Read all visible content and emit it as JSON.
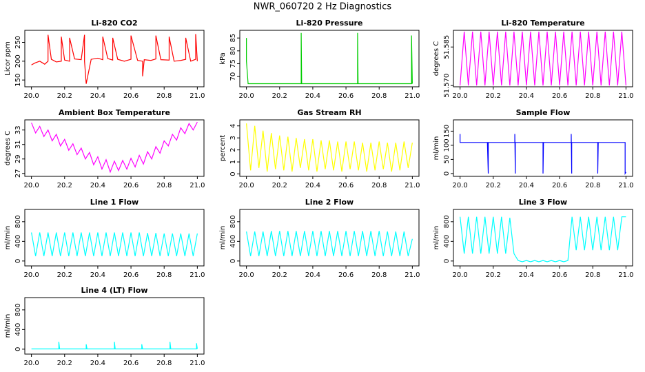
{
  "title": "NWR_060720  2 Hz Diagnostics",
  "chart_data": [
    {
      "type": "line",
      "title": "Li-820 CO2",
      "ylabel": "Licor ppm",
      "color": "#ff0000",
      "xlim": [
        19.96,
        21.04
      ],
      "xticks": [
        {
          "value": 20,
          "label": "20.0"
        },
        {
          "value": 20.2,
          "label": "20.2"
        },
        {
          "value": 20.4,
          "label": "20.4"
        },
        {
          "value": 20.6,
          "label": "20.6"
        },
        {
          "value": 20.8,
          "label": "20.8"
        },
        {
          "value": 21,
          "label": "21.0"
        }
      ],
      "ylim": [
        132,
        282
      ],
      "yticks": [
        150,
        200,
        250
      ],
      "x": [
        20,
        20.02,
        20.05,
        20.08,
        20.1,
        20.1,
        20.12,
        20.15,
        20.18,
        20.18,
        20.2,
        20.23,
        20.23,
        20.26,
        20.3,
        20.32,
        20.32,
        20.33,
        20.36,
        20.4,
        20.43,
        20.43,
        20.46,
        20.49,
        20.49,
        20.52,
        20.56,
        20.6,
        20.6,
        20.64,
        20.67,
        20.67,
        20.68,
        20.72,
        20.75,
        20.75,
        20.78,
        20.83,
        20.83,
        20.86,
        20.9,
        20.93,
        20.93,
        20.96,
        20.99,
        20.99,
        21
      ],
      "values": [
        190,
        195,
        200,
        192,
        200,
        270,
        205,
        198,
        200,
        265,
        203,
        200,
        262,
        206,
        204,
        270,
        200,
        140,
        205,
        208,
        204,
        265,
        207,
        203,
        262,
        205,
        200,
        205,
        268,
        202,
        200,
        160,
        204,
        202,
        206,
        268,
        204,
        203,
        265,
        200,
        202,
        205,
        262,
        200,
        205,
        272,
        200
      ]
    },
    {
      "type": "line",
      "title": "Li-820 Pressure",
      "ylabel": "kPa",
      "color": "#00cd00",
      "xlim": [
        19.96,
        21.04
      ],
      "xticks": [
        {
          "value": 20,
          "label": "20.0"
        },
        {
          "value": 20.2,
          "label": "20.2"
        },
        {
          "value": 20.4,
          "label": "20.4"
        },
        {
          "value": 20.6,
          "label": "20.6"
        },
        {
          "value": 20.8,
          "label": "20.8"
        },
        {
          "value": 21,
          "label": "21.0"
        }
      ],
      "ylim": [
        66,
        88
      ],
      "yticks": [
        70,
        75,
        80,
        85
      ],
      "x": [
        20,
        20,
        20.01,
        20.33,
        20.33,
        20.333,
        20.67,
        20.67,
        20.673,
        20.995,
        20.995,
        21
      ],
      "values": [
        85,
        76,
        67.2,
        67.2,
        87,
        67.2,
        67.2,
        87,
        67.2,
        67.2,
        86,
        67.2
      ]
    },
    {
      "type": "line",
      "title": "Li-820 Temperature",
      "ylabel": "degrees C",
      "color": "#ff00ff",
      "xlim": [
        19.96,
        21.04
      ],
      "xticks": [
        {
          "value": 20,
          "label": "20.0"
        },
        {
          "value": 20.2,
          "label": "20.2"
        },
        {
          "value": 20.4,
          "label": "20.4"
        },
        {
          "value": 20.6,
          "label": "20.6"
        },
        {
          "value": 20.8,
          "label": "20.8"
        },
        {
          "value": 21,
          "label": "21.0"
        }
      ],
      "ylim": [
        51.5695,
        51.5915
      ],
      "yticks": [
        {
          "value": 51.57,
          "label": "51.570"
        },
        {
          "value": 51.585,
          "label": "51.585"
        }
      ],
      "x": [
        20,
        20.025,
        20.05,
        20.075,
        20.1,
        20.125,
        20.15,
        20.175,
        20.2,
        20.225,
        20.25,
        20.275,
        20.3,
        20.325,
        20.35,
        20.375,
        20.4,
        20.425,
        20.45,
        20.475,
        20.5,
        20.525,
        20.55,
        20.575,
        20.6,
        20.625,
        20.65,
        20.675,
        20.7,
        20.725,
        20.75,
        20.775,
        20.8,
        20.825,
        20.85,
        20.875,
        20.9,
        20.925,
        20.95,
        20.975,
        21
      ],
      "values": [
        51.57,
        51.591,
        51.57,
        51.591,
        51.57,
        51.591,
        51.57,
        51.591,
        51.57,
        51.591,
        51.57,
        51.591,
        51.57,
        51.591,
        51.57,
        51.591,
        51.57,
        51.591,
        51.57,
        51.591,
        51.57,
        51.591,
        51.57,
        51.591,
        51.57,
        51.591,
        51.57,
        51.591,
        51.57,
        51.591,
        51.57,
        51.591,
        51.57,
        51.591,
        51.57,
        51.591,
        51.57,
        51.591,
        51.57,
        51.591,
        51.57
      ]
    },
    {
      "type": "line",
      "title": "Ambient Box Temperature",
      "ylabel": "degrees C",
      "color": "#ff00ff",
      "xlim": [
        19.96,
        21.04
      ],
      "xticks": [
        {
          "value": 20,
          "label": "20.0"
        },
        {
          "value": 20.2,
          "label": "20.2"
        },
        {
          "value": 20.4,
          "label": "20.4"
        },
        {
          "value": 20.6,
          "label": "20.6"
        },
        {
          "value": 20.8,
          "label": "20.8"
        },
        {
          "value": 21,
          "label": "21.0"
        }
      ],
      "ylim": [
        26.6,
        34.4
      ],
      "yticks": [
        27,
        29,
        31,
        33
      ],
      "x": [
        20,
        20.025,
        20.05,
        20.075,
        20.1,
        20.125,
        20.15,
        20.175,
        20.2,
        20.225,
        20.25,
        20.275,
        20.3,
        20.325,
        20.35,
        20.375,
        20.4,
        20.425,
        20.45,
        20.475,
        20.5,
        20.525,
        20.55,
        20.575,
        20.6,
        20.625,
        20.65,
        20.675,
        20.7,
        20.725,
        20.75,
        20.775,
        20.8,
        20.825,
        20.85,
        20.875,
        20.9,
        20.925,
        20.95,
        20.975,
        21
      ],
      "values": [
        34.0,
        32.6,
        33.5,
        32.1,
        33.0,
        31.5,
        32.4,
        30.8,
        31.7,
        30.2,
        31.1,
        29.6,
        30.5,
        29.0,
        29.9,
        28.2,
        29.3,
        27.6,
        28.9,
        27.2,
        28.7,
        27.4,
        28.8,
        27.6,
        29.1,
        27.9,
        29.5,
        28.3,
        30.0,
        29.0,
        30.7,
        29.8,
        31.5,
        30.8,
        32.4,
        31.6,
        33.3,
        32.5,
        33.9,
        33.0,
        34.1
      ]
    },
    {
      "type": "line",
      "title": "Gas Stream RH",
      "ylabel": "percent",
      "color": "#ffff00",
      "xlim": [
        19.96,
        21.04
      ],
      "xticks": [
        {
          "value": 20,
          "label": "20.0"
        },
        {
          "value": 20.2,
          "label": "20.2"
        },
        {
          "value": 20.4,
          "label": "20.4"
        },
        {
          "value": 20.6,
          "label": "20.6"
        },
        {
          "value": 20.8,
          "label": "20.8"
        },
        {
          "value": 21,
          "label": "21.0"
        }
      ],
      "ylim": [
        -0.2,
        4.5
      ],
      "yticks": [
        0,
        1,
        2,
        3,
        4
      ],
      "x": [
        20,
        20.025,
        20.05,
        20.075,
        20.1,
        20.125,
        20.15,
        20.175,
        20.2,
        20.225,
        20.25,
        20.275,
        20.3,
        20.325,
        20.35,
        20.375,
        20.4,
        20.425,
        20.45,
        20.475,
        20.5,
        20.525,
        20.55,
        20.575,
        20.6,
        20.625,
        20.65,
        20.675,
        20.7,
        20.725,
        20.75,
        20.775,
        20.8,
        20.825,
        20.85,
        20.875,
        20.9,
        20.925,
        20.95,
        20.975,
        21
      ],
      "values": [
        4.2,
        0.3,
        4.0,
        0.5,
        3.6,
        0.2,
        3.4,
        0.4,
        3.2,
        0.3,
        3.1,
        0.2,
        3.0,
        0.5,
        2.9,
        0.3,
        2.9,
        0.2,
        2.8,
        0.4,
        2.8,
        0.3,
        2.7,
        0.2,
        2.7,
        0.4,
        2.7,
        0.3,
        2.6,
        0.2,
        2.6,
        0.3,
        2.7,
        0.4,
        2.6,
        0.2,
        2.6,
        0.3,
        2.7,
        0.5,
        2.6
      ]
    },
    {
      "type": "line",
      "title": "Sample Flow",
      "ylabel": "ml/min",
      "color": "#0000ff",
      "xlim": [
        19.96,
        21.04
      ],
      "xticks": [
        {
          "value": 20,
          "label": "20.0"
        },
        {
          "value": 20.2,
          "label": "20.2"
        },
        {
          "value": 20.4,
          "label": "20.4"
        },
        {
          "value": 20.6,
          "label": "20.6"
        },
        {
          "value": 20.8,
          "label": "20.8"
        },
        {
          "value": 21,
          "label": "21.0"
        }
      ],
      "ylim": [
        -10,
        190
      ],
      "yticks": [
        0,
        50,
        100,
        150
      ],
      "x": [
        20,
        20,
        20.165,
        20.165,
        20.17,
        20.17,
        20.33,
        20.33,
        20.333,
        20.333,
        20.5,
        20.5,
        20.503,
        20.67,
        20.67,
        20.673,
        20.673,
        20.83,
        20.83,
        20.833,
        20.995,
        20.995,
        21
      ],
      "values": [
        140,
        110,
        110,
        105,
        0,
        110,
        110,
        140,
        0,
        110,
        110,
        0,
        110,
        110,
        140,
        0,
        110,
        110,
        0,
        110,
        110,
        0,
        5
      ]
    },
    {
      "type": "line",
      "title": "Line 1 Flow",
      "ylabel": "ml/min",
      "color": "#00ffff",
      "xlim": [
        19.96,
        21.04
      ],
      "xticks": [
        {
          "value": 20,
          "label": "20.0"
        },
        {
          "value": 20.2,
          "label": "20.2"
        },
        {
          "value": 20.4,
          "label": "20.4"
        },
        {
          "value": 20.6,
          "label": "20.6"
        },
        {
          "value": 20.8,
          "label": "20.8"
        },
        {
          "value": 21,
          "label": "21.0"
        }
      ],
      "ylim": [
        -100,
        1050
      ],
      "yticks": [
        0,
        400,
        800
      ],
      "x": [
        20,
        20.025,
        20.05,
        20.075,
        20.1,
        20.125,
        20.15,
        20.175,
        20.2,
        20.225,
        20.25,
        20.275,
        20.3,
        20.325,
        20.35,
        20.375,
        20.4,
        20.425,
        20.45,
        20.475,
        20.5,
        20.525,
        20.55,
        20.575,
        20.6,
        20.625,
        20.65,
        20.675,
        20.7,
        20.725,
        20.75,
        20.775,
        20.8,
        20.825,
        20.85,
        20.875,
        20.9,
        20.925,
        20.95,
        20.975,
        21
      ],
      "values": [
        580,
        100,
        580,
        100,
        580,
        100,
        580,
        100,
        580,
        100,
        580,
        100,
        580,
        100,
        580,
        100,
        580,
        100,
        580,
        100,
        580,
        100,
        580,
        100,
        580,
        100,
        580,
        100,
        570,
        100,
        570,
        100,
        560,
        100,
        560,
        100,
        560,
        100,
        560,
        100,
        560
      ]
    },
    {
      "type": "line",
      "title": "Line 2 Flow",
      "ylabel": "ml/min",
      "color": "#00ffff",
      "xlim": [
        19.96,
        21.04
      ],
      "xticks": [
        {
          "value": 20,
          "label": "20.0"
        },
        {
          "value": 20.2,
          "label": "20.2"
        },
        {
          "value": 20.4,
          "label": "20.4"
        },
        {
          "value": 20.6,
          "label": "20.6"
        },
        {
          "value": 20.8,
          "label": "20.8"
        },
        {
          "value": 21,
          "label": "21.0"
        }
      ],
      "ylim": [
        -100,
        1050
      ],
      "yticks": [
        0,
        400,
        800
      ],
      "x": [
        20,
        20.025,
        20.05,
        20.075,
        20.1,
        20.125,
        20.15,
        20.175,
        20.2,
        20.225,
        20.25,
        20.275,
        20.3,
        20.325,
        20.35,
        20.375,
        20.4,
        20.425,
        20.45,
        20.475,
        20.5,
        20.525,
        20.55,
        20.575,
        20.6,
        20.625,
        20.65,
        20.675,
        20.7,
        20.725,
        20.75,
        20.775,
        20.8,
        20.825,
        20.85,
        20.875,
        20.9,
        20.925,
        20.95,
        20.975,
        21
      ],
      "values": [
        600,
        100,
        600,
        100,
        600,
        100,
        610,
        100,
        610,
        100,
        610,
        100,
        610,
        100,
        610,
        100,
        610,
        100,
        610,
        100,
        610,
        100,
        610,
        100,
        610,
        100,
        610,
        100,
        610,
        100,
        610,
        100,
        610,
        100,
        600,
        100,
        600,
        100,
        600,
        100,
        450
      ]
    },
    {
      "type": "line",
      "title": "Line 3 Flow",
      "ylabel": "ml/min",
      "color": "#00ffff",
      "xlim": [
        19.96,
        21.04
      ],
      "xticks": [
        {
          "value": 20,
          "label": "20.0"
        },
        {
          "value": 20.2,
          "label": "20.2"
        },
        {
          "value": 20.4,
          "label": "20.4"
        },
        {
          "value": 20.6,
          "label": "20.6"
        },
        {
          "value": 20.8,
          "label": "20.8"
        },
        {
          "value": 21,
          "label": "21.0"
        }
      ],
      "ylim": [
        -100,
        1050
      ],
      "yticks": [
        0,
        400,
        800
      ],
      "x": [
        20,
        20.025,
        20.05,
        20.075,
        20.1,
        20.125,
        20.15,
        20.175,
        20.2,
        20.225,
        20.25,
        20.275,
        20.3,
        20.325,
        20.35,
        20.375,
        20.4,
        20.425,
        20.45,
        20.475,
        20.5,
        20.525,
        20.55,
        20.575,
        20.6,
        20.625,
        20.65,
        20.675,
        20.7,
        20.725,
        20.75,
        20.775,
        20.8,
        20.825,
        20.85,
        20.875,
        20.9,
        20.925,
        20.95,
        20.975,
        21
      ],
      "values": [
        900,
        150,
        900,
        150,
        900,
        150,
        900,
        150,
        900,
        150,
        900,
        150,
        880,
        150,
        10,
        -15,
        10,
        -15,
        10,
        -15,
        10,
        -15,
        10,
        -15,
        10,
        -15,
        10,
        900,
        220,
        900,
        220,
        900,
        220,
        900,
        220,
        900,
        220,
        900,
        220,
        900,
        900
      ]
    },
    {
      "type": "line",
      "title": "Line 4 (LT) Flow",
      "ylabel": "ml/min",
      "color": "#00ffff",
      "xlim": [
        19.96,
        21.04
      ],
      "xticks": [
        {
          "value": 20,
          "label": "20.0"
        },
        {
          "value": 20.2,
          "label": "20.2"
        },
        {
          "value": 20.4,
          "label": "20.4"
        },
        {
          "value": 20.6,
          "label": "20.6"
        },
        {
          "value": 20.8,
          "label": "20.8"
        },
        {
          "value": 21,
          "label": "21.0"
        }
      ],
      "ylim": [
        -100,
        1050
      ],
      "yticks": [
        0,
        400,
        800
      ],
      "x": [
        20,
        20.165,
        20.165,
        20.17,
        20.33,
        20.33,
        20.335,
        20.5,
        20.5,
        20.505,
        20.665,
        20.665,
        20.67,
        20.835,
        20.835,
        20.84,
        20.995,
        20.995,
        21
      ],
      "values": [
        5,
        5,
        150,
        5,
        5,
        100,
        5,
        5,
        150,
        5,
        5,
        100,
        5,
        5,
        150,
        5,
        5,
        120,
        5
      ]
    }
  ]
}
